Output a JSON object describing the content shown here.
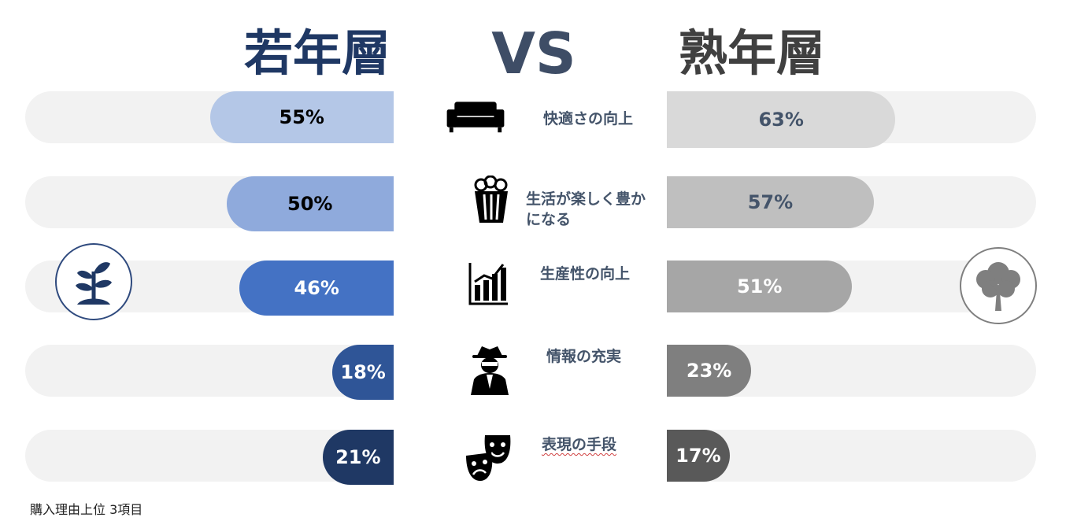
{
  "titles": {
    "young": "若年層",
    "vs": "VS",
    "senior": "熟年層"
  },
  "footnote": "購入理由上位 3項目",
  "colors": {
    "track": "#f2f2f2",
    "young_bars": [
      "#b4c7e7",
      "#8faadc",
      "#4472c4",
      "#2f5597",
      "#1f3864"
    ],
    "senior_bars": [
      "#d9d9d9",
      "#bfbfbf",
      "#a6a6a6",
      "#7f7f7f",
      "#595959"
    ],
    "label_text": "#44546a"
  },
  "icons": [
    "sofa-icon",
    "popcorn-icon",
    "bar-chart-icon",
    "spy-icon",
    "theater-masks-icon"
  ],
  "chart_data": {
    "type": "bar",
    "categories": [
      "快適さの向上",
      "生活が楽しく豊かになる",
      "生産性の向上",
      "情報の充実",
      "表現の手段"
    ],
    "category_labels_display": [
      "快適さの向上",
      "生活が楽しく豊か\nになる",
      "生産性の向上",
      "情報の充実",
      "表現の手段"
    ],
    "series": [
      {
        "name": "若年層",
        "values": [
          55,
          50,
          46,
          18,
          21
        ],
        "labels": [
          "55%",
          "50%",
          "46%",
          "18%",
          "21%"
        ]
      },
      {
        "name": "熟年層",
        "values": [
          63,
          57,
          51,
          23,
          17
        ],
        "labels": [
          "63%",
          "57%",
          "51%",
          "23%",
          "17%"
        ]
      }
    ],
    "ylim": [
      0,
      100
    ],
    "title": "",
    "xlabel": "",
    "ylabel": ""
  }
}
